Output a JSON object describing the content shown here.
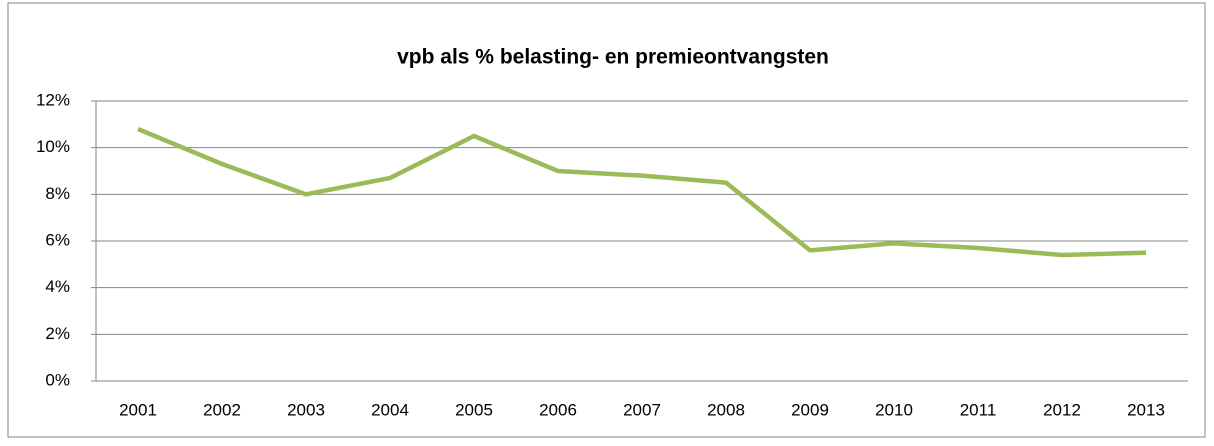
{
  "chart_data": {
    "type": "line",
    "title": "vpb als % belasting- en premieontvangsten",
    "categories": [
      "2001",
      "2002",
      "2003",
      "2004",
      "2005",
      "2006",
      "2007",
      "2008",
      "2009",
      "2010",
      "2011",
      "2012",
      "2013"
    ],
    "series": [
      {
        "color": "#9bbb59",
        "values": [
          10.8,
          9.3,
          8.0,
          8.7,
          10.5,
          9.0,
          8.8,
          8.5,
          5.6,
          5.9,
          5.7,
          5.4,
          5.5
        ]
      }
    ],
    "ylim": [
      0,
      12
    ],
    "yticks": [
      {
        "value": 0,
        "label": "0%"
      },
      {
        "value": 2,
        "label": "2%"
      },
      {
        "value": 4,
        "label": "4%"
      },
      {
        "value": 6,
        "label": "6%"
      },
      {
        "value": 8,
        "label": "8%"
      },
      {
        "value": 10,
        "label": "10%"
      },
      {
        "value": 12,
        "label": "12%"
      }
    ],
    "grid": true
  }
}
